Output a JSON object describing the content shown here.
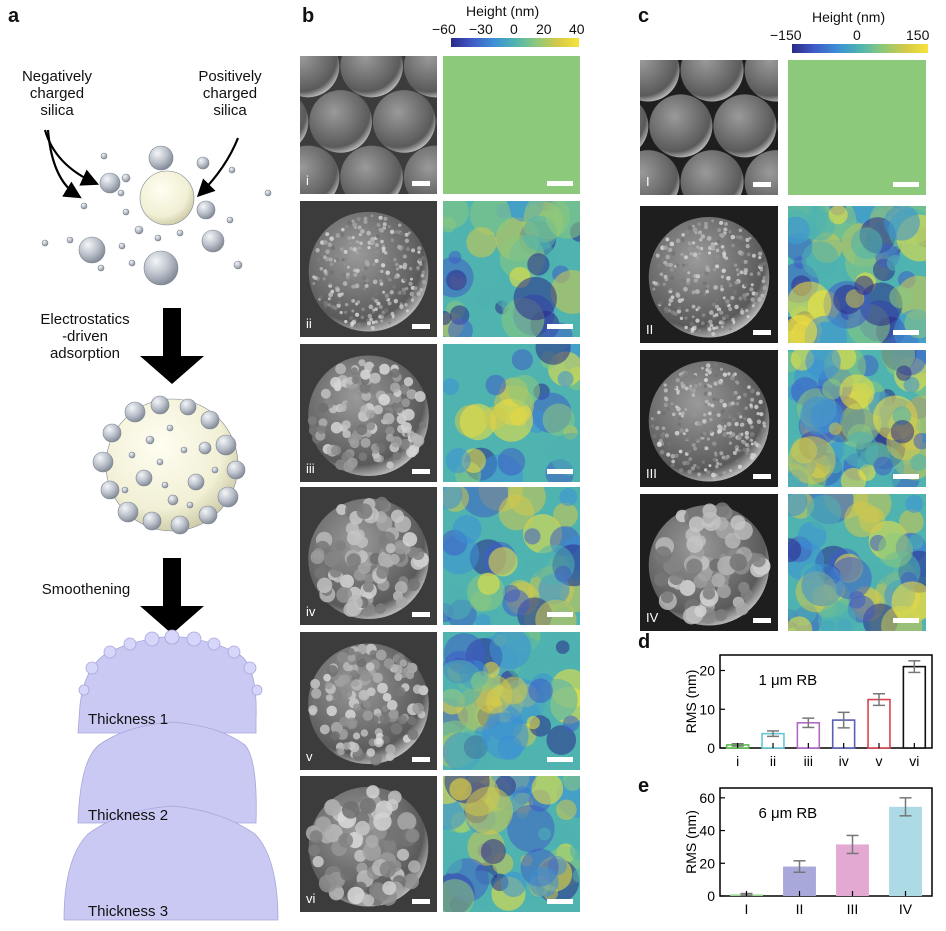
{
  "panel_a": {
    "letter": "a",
    "neg_label": "Negatively\ncharged\nsilica",
    "pos_label": "Positively\ncharged\nsilica",
    "step1": "Electrostatics\n-driven\nadsorption",
    "step2": "Smoothening",
    "thicknesses": [
      "Thickness 1",
      "Thickness 2",
      "Thickness 3"
    ]
  },
  "panel_b": {
    "letter": "b",
    "colorbar_title": "Height (nm)",
    "colorbar_ticks": [
      "−60",
      "−30",
      "0",
      "20",
      "40"
    ],
    "rows": [
      "i",
      "ii",
      "iii",
      "iv",
      "v",
      "vi"
    ]
  },
  "panel_c": {
    "letter": "c",
    "colorbar_title": "Height (nm)",
    "colorbar_ticks": [
      "−150",
      "0",
      "150"
    ],
    "rows": [
      "I",
      "II",
      "III",
      "IV"
    ]
  },
  "colors": {
    "particle": "#b9bfc9",
    "core": "#f3f1d8",
    "profile": "#c9c9f4",
    "colormap": [
      "#2b2a8a",
      "#3f5cc7",
      "#3d8fd6",
      "#4fb3b0",
      "#8cc97b",
      "#d4c94a",
      "#f6e33a"
    ]
  },
  "chart_data": [
    {
      "panel": "d",
      "type": "bar",
      "annotation": "1 μm RB",
      "ylabel": "RMS (nm)",
      "categories": [
        "i",
        "ii",
        "iii",
        "iv",
        "v",
        "vi"
      ],
      "values": [
        0.8,
        3.7,
        6.5,
        7.2,
        12.5,
        21.0
      ],
      "errors": [
        0.3,
        0.7,
        1.2,
        2.0,
        1.5,
        1.5
      ],
      "bar_colors": [
        "#5bbf4f",
        "#66c7d4",
        "#b168c8",
        "#5a5fb5",
        "#d9434e",
        "#111111"
      ],
      "filled": false,
      "ylim": [
        0,
        24
      ],
      "yticks": [
        0,
        10,
        20
      ]
    },
    {
      "panel": "e",
      "type": "bar",
      "annotation": "6 μm RB",
      "ylabel": "RMS (nm)",
      "categories": [
        "I",
        "II",
        "III",
        "IV"
      ],
      "values": [
        1.0,
        18.0,
        31.5,
        54.5
      ],
      "errors": [
        0.5,
        3.5,
        5.5,
        5.5
      ],
      "bar_colors": [
        "#9fd69a",
        "#a9a8db",
        "#e3a9d3",
        "#acdbe6"
      ],
      "filled": true,
      "ylim": [
        0,
        66
      ],
      "yticks": [
        0,
        20,
        40,
        60
      ]
    }
  ]
}
